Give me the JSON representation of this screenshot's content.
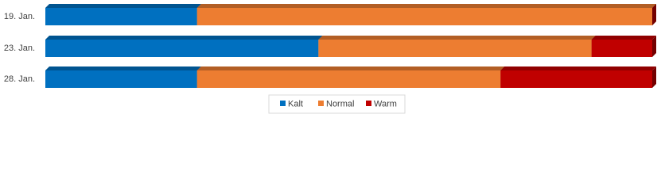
{
  "chart_data": {
    "type": "stacked-bar-horizontal",
    "categories": [
      "19. Jan.",
      "23. Jan.",
      "28. Jan."
    ],
    "series": [
      {
        "name": "Kalt",
        "color": "#0070c0",
        "values": [
          25,
          45,
          25
        ]
      },
      {
        "name": "Normal",
        "color": "#ed7d31",
        "values": [
          75,
          45,
          50
        ]
      },
      {
        "name": "Warm",
        "color": "#c00000",
        "values": [
          0,
          10,
          25
        ]
      }
    ],
    "xlim": [
      0,
      100
    ],
    "legend": "bottom"
  }
}
